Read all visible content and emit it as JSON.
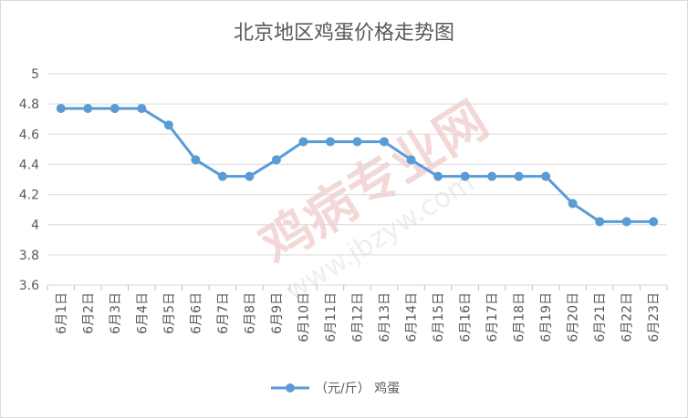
{
  "chart_data": {
    "type": "line",
    "title": "北京地区鸡蛋价格走势图",
    "categories": [
      "6月1日",
      "6月2日",
      "6月3日",
      "6月4日",
      "6月5日",
      "6月6日",
      "6月7日",
      "6月8日",
      "6月9日",
      "6月10日",
      "6月11日",
      "6月12日",
      "6月13日",
      "6月14日",
      "6月15日",
      "6月16日",
      "6月17日",
      "6月18日",
      "6月19日",
      "6月20日",
      "6月21日",
      "6月22日",
      "6月23日"
    ],
    "series": [
      {
        "name": "（元/斤） 鸡蛋",
        "values": [
          4.77,
          4.77,
          4.77,
          4.77,
          4.66,
          4.43,
          4.32,
          4.32,
          4.43,
          4.55,
          4.55,
          4.55,
          4.55,
          4.43,
          4.32,
          4.32,
          4.32,
          4.32,
          4.32,
          4.14,
          4.02,
          4.02,
          4.02
        ],
        "color": "#5b9bd5"
      }
    ],
    "yticks": [
      3.6,
      3.8,
      4,
      4.2,
      4.4,
      4.6,
      4.8,
      5
    ],
    "ylim": [
      3.6,
      5
    ],
    "grid": true,
    "legend": "bottom",
    "watermark": [
      "鸡病专业网",
      "www.jbzyw.com"
    ]
  }
}
